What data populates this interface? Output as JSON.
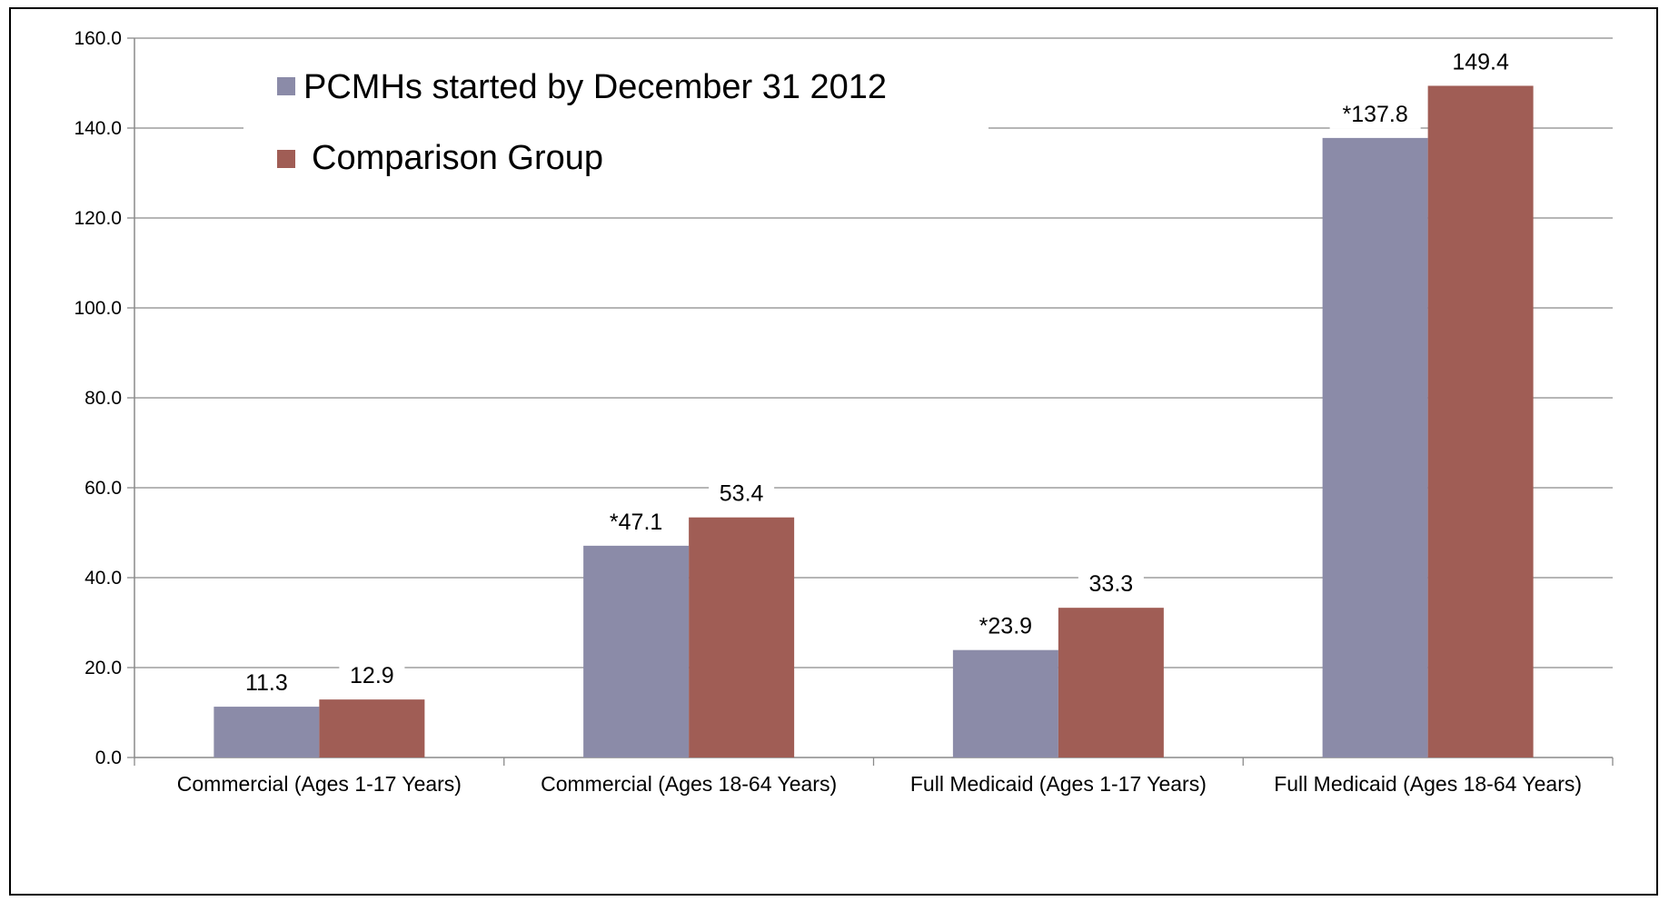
{
  "chart_data": {
    "type": "bar",
    "categories": [
      "Commercial (Ages 1-17 Years)",
      "Commercial (Ages 18-64 Years)",
      "Full Medicaid (Ages 1-17 Years)",
      "Full Medicaid (Ages 18-64 Years)"
    ],
    "series": [
      {
        "name": "PCMHs started by December 31 2012",
        "values": [
          11.3,
          47.1,
          23.9,
          137.8
        ],
        "labels": [
          "11.3",
          "*47.1",
          "*23.9",
          "*137.8"
        ],
        "color": "#8b8ba8"
      },
      {
        "name": "Comparison Group",
        "values": [
          12.9,
          53.4,
          33.3,
          149.4
        ],
        "labels": [
          "12.9",
          "53.4",
          "33.3",
          "149.4"
        ],
        "color": "#a05d55"
      }
    ],
    "yticks": [
      "0.0",
      "20.0",
      "40.0",
      "60.0",
      "80.0",
      "100.0",
      "120.0",
      "140.0",
      "160.0"
    ],
    "ylim": [
      0,
      160
    ],
    "title": "",
    "xlabel": "",
    "ylabel": "",
    "grid": true,
    "legend_position": "top-left"
  }
}
